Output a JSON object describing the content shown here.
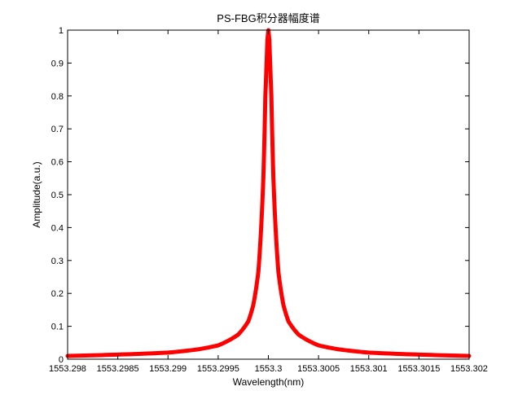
{
  "chart_data": {
    "type": "line",
    "title": "PS-FBG积分器幅度谱",
    "xlabel": "Wavelength(nm)",
    "ylabel": "Amplitude(a.u.)",
    "xlim": [
      1553.298,
      1553.302
    ],
    "ylim": [
      0,
      1
    ],
    "grid": false,
    "line_color": "#ff0000",
    "x_ticks": [
      1553.298,
      1553.2985,
      1553.299,
      1553.2995,
      1553.3,
      1553.3005,
      1553.301,
      1553.3015,
      1553.302
    ],
    "x_tick_labels": [
      "1553.298",
      "1553.2985",
      "1553.299",
      "1553.2995",
      "1553.3",
      "1553.3005",
      "1553.301",
      "1553.3015",
      "1553.302"
    ],
    "y_ticks": [
      0,
      0.1,
      0.2,
      0.3,
      0.4,
      0.5,
      0.6,
      0.7,
      0.8,
      0.9,
      1
    ],
    "y_tick_labels": [
      "0",
      "0.1",
      "0.2",
      "0.3",
      "0.4",
      "0.5",
      "0.6",
      "0.7",
      "0.8",
      "0.9",
      "1"
    ],
    "series": [
      {
        "x": [
          1553.298,
          1553.2985,
          1553.299,
          1553.2993,
          1553.2995,
          1553.2997,
          1553.2998,
          1553.29985,
          1553.2999,
          1553.29995,
          1553.29997,
          1553.29999,
          1553.3,
          1553.30001,
          1553.30003,
          1553.30005,
          1553.3001,
          1553.30015,
          1553.3002,
          1553.3003,
          1553.3005,
          1553.3007,
          1553.301,
          1553.3015,
          1553.302
        ],
        "y": [
          0.01,
          0.014,
          0.02,
          0.03,
          0.042,
          0.075,
          0.115,
          0.165,
          0.265,
          0.55,
          0.8,
          0.97,
          1.0,
          0.97,
          0.8,
          0.55,
          0.265,
          0.165,
          0.115,
          0.075,
          0.042,
          0.03,
          0.02,
          0.014,
          0.01
        ]
      }
    ]
  }
}
